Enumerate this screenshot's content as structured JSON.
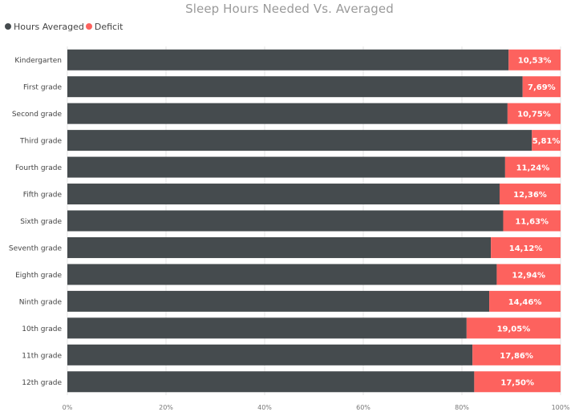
{
  "colors": {
    "hours_averaged": "#454b4e",
    "deficit": "#fd625e",
    "gridline": "#e6e6e6",
    "label_text": "#444444",
    "tick_text": "#777777",
    "deficit_label_text": "#ffffff"
  },
  "legend": {
    "items": [
      {
        "label": "Hours Averaged",
        "color_key": "hours_averaged"
      },
      {
        "label": "Deficit",
        "color_key": "deficit"
      }
    ]
  },
  "chart_data": {
    "type": "bar",
    "orientation": "horizontal",
    "stacked": "100%",
    "title": "Sleep Hours Needed Vs. Averaged",
    "xlabel": "",
    "ylabel": "",
    "xlim": [
      0,
      100
    ],
    "grid": true,
    "legend_position": "top-left",
    "x_ticks": [
      "0%",
      "20%",
      "40%",
      "60%",
      "80%",
      "100%"
    ],
    "categories": [
      "Kindergarten",
      "First grade",
      "Second grade",
      "Third grade",
      "Fourth grade",
      "Fifth grade",
      "Sixth grade",
      "Seventh grade",
      "Eighth grade",
      "Ninth grade",
      "10th grade",
      "11th grade",
      "12th grade"
    ],
    "series": [
      {
        "name": "Hours Averaged",
        "values": [
          89.47,
          92.31,
          89.25,
          94.19,
          88.76,
          87.64,
          88.37,
          85.88,
          87.06,
          85.54,
          80.95,
          82.14,
          82.5
        ]
      },
      {
        "name": "Deficit",
        "values": [
          10.53,
          7.69,
          10.75,
          5.81,
          11.24,
          12.36,
          11.63,
          14.12,
          12.94,
          14.46,
          19.05,
          17.86,
          17.5
        ],
        "data_labels": [
          "10,53%",
          "7,69%",
          "10,75%",
          "5,81%",
          "11,24%",
          "12,36%",
          "11,63%",
          "14,12%",
          "12,94%",
          "14,46%",
          "19,05%",
          "17,86%",
          "17,50%"
        ]
      }
    ]
  }
}
